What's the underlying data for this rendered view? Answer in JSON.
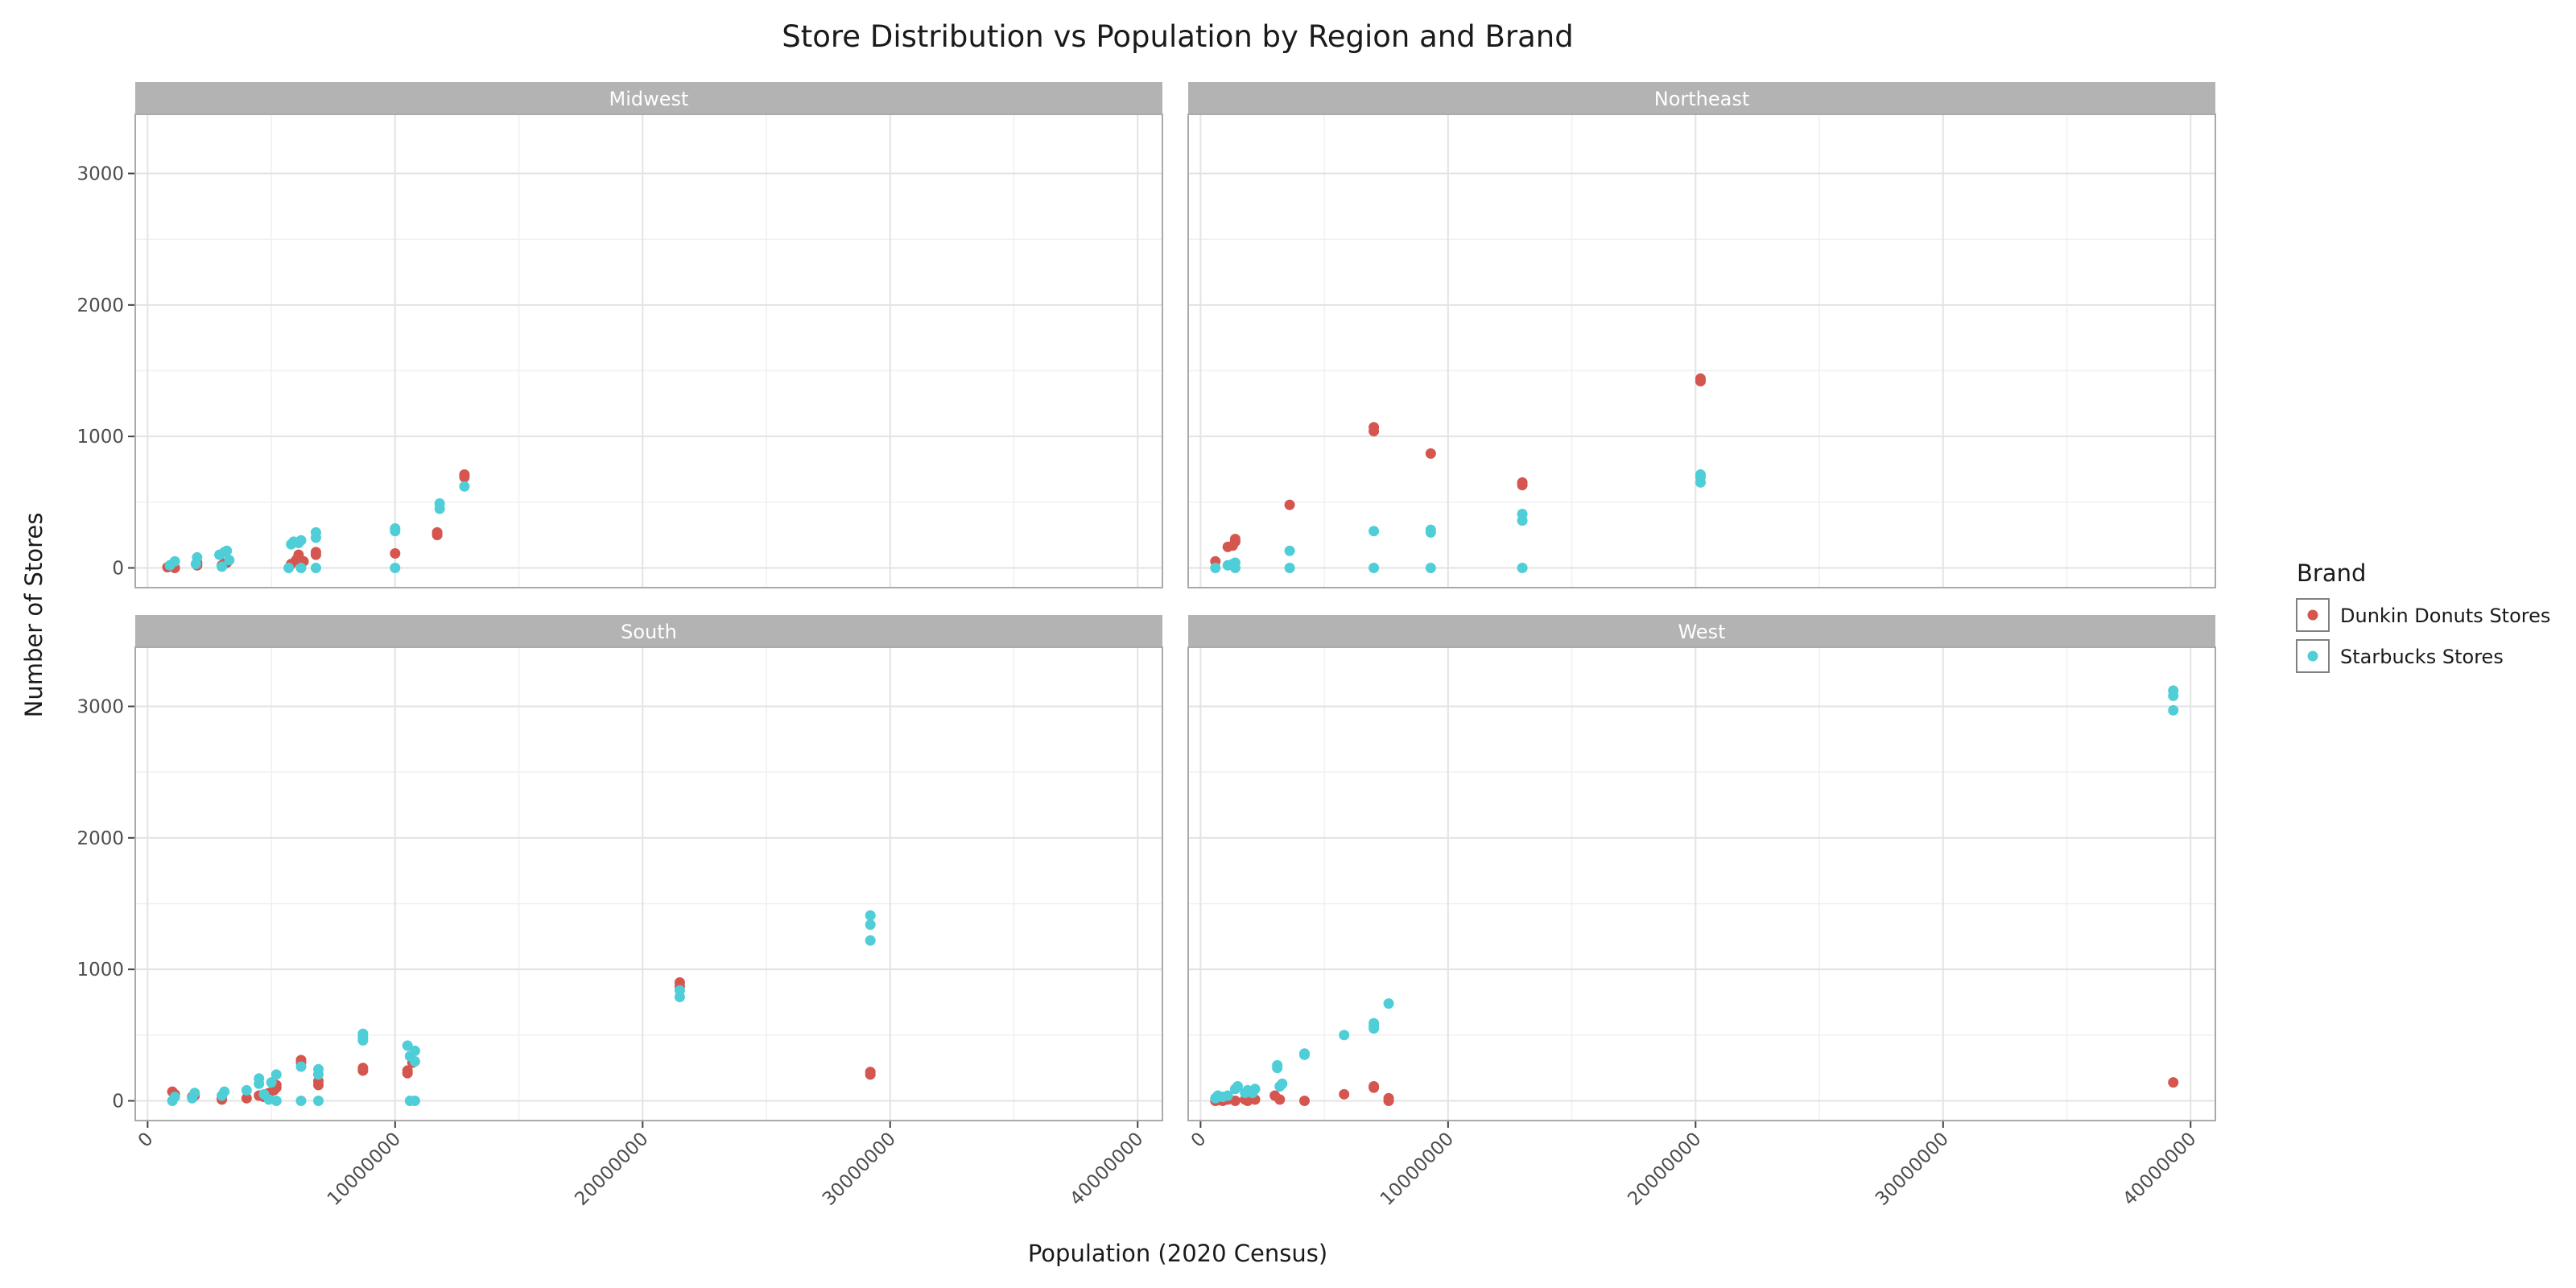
{
  "chart_data": {
    "type": "scatter",
    "title": "Store Distribution vs Population by Region and Brand",
    "xlabel": "Population (2020 Census)",
    "ylabel": "Number of Stores",
    "xlim": [
      -500000,
      41000000
    ],
    "ylim": [
      -150,
      3450
    ],
    "x_ticks": [
      0,
      10000000,
      20000000,
      30000000,
      40000000
    ],
    "x_tick_labels": [
      "0",
      "10000000",
      "20000000",
      "30000000",
      "40000000"
    ],
    "y_ticks": [
      0,
      1000,
      2000,
      3000
    ],
    "y_tick_labels": [
      "0",
      "1000",
      "2000",
      "3000"
    ],
    "grid": true,
    "legend": {
      "title": "Brand",
      "position": "right",
      "entries": [
        {
          "label": "Dunkin Donuts Stores",
          "color": "#D5564E"
        },
        {
          "label": "Starbucks Stores",
          "color": "#4FCED8"
        }
      ]
    },
    "colors": {
      "dunkin": "#D5564E",
      "starbucks": "#4FCED8",
      "strip": "#B3B3B3",
      "grid": "#E3E3E3",
      "panel_border": "#AAAAAA"
    },
    "facets": [
      {
        "name": "Midwest",
        "show_x_ticks": false,
        "dunkin": [
          [
            800000,
            5
          ],
          [
            1100000,
            0
          ],
          [
            2000000,
            20
          ],
          [
            2000000,
            40
          ],
          [
            3000000,
            20
          ],
          [
            3100000,
            35
          ],
          [
            3200000,
            40
          ],
          [
            5800000,
            30
          ],
          [
            6000000,
            60
          ],
          [
            6100000,
            100
          ],
          [
            6300000,
            50
          ],
          [
            6800000,
            100
          ],
          [
            6800000,
            120
          ],
          [
            10000000,
            110
          ],
          [
            11700000,
            250
          ],
          [
            11700000,
            270
          ],
          [
            12800000,
            690
          ],
          [
            12800000,
            710
          ]
        ],
        "starbucks": [
          [
            900000,
            20
          ],
          [
            1100000,
            50
          ],
          [
            1950000,
            30
          ],
          [
            2000000,
            80
          ],
          [
            2900000,
            100
          ],
          [
            3000000,
            10
          ],
          [
            3100000,
            120
          ],
          [
            3200000,
            130
          ],
          [
            3300000,
            60
          ],
          [
            5700000,
            0
          ],
          [
            5800000,
            180
          ],
          [
            5900000,
            200
          ],
          [
            6100000,
            190
          ],
          [
            6200000,
            210
          ],
          [
            6200000,
            0
          ],
          [
            6800000,
            230
          ],
          [
            6800000,
            270
          ],
          [
            6800000,
            0
          ],
          [
            10000000,
            280
          ],
          [
            10000000,
            300
          ],
          [
            10000000,
            0
          ],
          [
            11800000,
            450
          ],
          [
            11800000,
            490
          ],
          [
            12800000,
            620
          ]
        ]
      },
      {
        "name": "Northeast",
        "show_x_ticks": false,
        "dunkin": [
          [
            600000,
            50
          ],
          [
            1100000,
            160
          ],
          [
            1300000,
            170
          ],
          [
            1400000,
            200
          ],
          [
            1400000,
            220
          ],
          [
            3600000,
            480
          ],
          [
            7000000,
            1040
          ],
          [
            7000000,
            1070
          ],
          [
            9300000,
            870
          ],
          [
            13000000,
            630
          ],
          [
            13000000,
            650
          ],
          [
            20200000,
            1420
          ],
          [
            20200000,
            1440
          ]
        ],
        "starbucks": [
          [
            600000,
            0
          ],
          [
            1100000,
            20
          ],
          [
            1300000,
            30
          ],
          [
            1400000,
            0
          ],
          [
            1400000,
            40
          ],
          [
            3600000,
            130
          ],
          [
            3600000,
            0
          ],
          [
            7000000,
            280
          ],
          [
            7000000,
            0
          ],
          [
            9300000,
            270
          ],
          [
            9300000,
            290
          ],
          [
            9300000,
            0
          ],
          [
            13000000,
            360
          ],
          [
            13000000,
            410
          ],
          [
            13000000,
            0
          ],
          [
            20200000,
            650
          ],
          [
            20200000,
            690
          ],
          [
            20200000,
            710
          ]
        ]
      },
      {
        "name": "South",
        "show_x_ticks": true,
        "dunkin": [
          [
            1000000,
            70
          ],
          [
            1100000,
            50
          ],
          [
            1800000,
            30
          ],
          [
            1900000,
            40
          ],
          [
            3000000,
            10
          ],
          [
            3000000,
            20
          ],
          [
            4000000,
            20
          ],
          [
            4500000,
            40
          ],
          [
            4700000,
            30
          ],
          [
            4900000,
            60
          ],
          [
            5100000,
            80
          ],
          [
            5200000,
            100
          ],
          [
            5200000,
            120
          ],
          [
            6200000,
            290
          ],
          [
            6200000,
            310
          ],
          [
            6900000,
            120
          ],
          [
            6900000,
            150
          ],
          [
            8700000,
            230
          ],
          [
            8700000,
            250
          ],
          [
            10500000,
            210
          ],
          [
            10500000,
            230
          ],
          [
            10700000,
            290
          ],
          [
            21500000,
            870
          ],
          [
            21500000,
            900
          ],
          [
            29200000,
            200
          ],
          [
            29200000,
            220
          ]
        ],
        "starbucks": [
          [
            1000000,
            0
          ],
          [
            1100000,
            30
          ],
          [
            1800000,
            20
          ],
          [
            1900000,
            60
          ],
          [
            3000000,
            40
          ],
          [
            3100000,
            70
          ],
          [
            4000000,
            80
          ],
          [
            4500000,
            130
          ],
          [
            4500000,
            170
          ],
          [
            4700000,
            50
          ],
          [
            4900000,
            10
          ],
          [
            5000000,
            140
          ],
          [
            5200000,
            200
          ],
          [
            5200000,
            0
          ],
          [
            6200000,
            260
          ],
          [
            6200000,
            0
          ],
          [
            6900000,
            200
          ],
          [
            6900000,
            240
          ],
          [
            6900000,
            0
          ],
          [
            8700000,
            460
          ],
          [
            8700000,
            480
          ],
          [
            8700000,
            510
          ],
          [
            10500000,
            420
          ],
          [
            10600000,
            340
          ],
          [
            10600000,
            0
          ],
          [
            10800000,
            300
          ],
          [
            10800000,
            380
          ],
          [
            10800000,
            0
          ],
          [
            21500000,
            790
          ],
          [
            21500000,
            840
          ],
          [
            29200000,
            1220
          ],
          [
            29200000,
            1340
          ],
          [
            29200000,
            1410
          ]
        ]
      },
      {
        "name": "West",
        "show_x_ticks": true,
        "dunkin": [
          [
            600000,
            0
          ],
          [
            700000,
            5
          ],
          [
            900000,
            0
          ],
          [
            1100000,
            10
          ],
          [
            1400000,
            0
          ],
          [
            1800000,
            10
          ],
          [
            1900000,
            0
          ],
          [
            2100000,
            20
          ],
          [
            2200000,
            10
          ],
          [
            3000000,
            40
          ],
          [
            3200000,
            10
          ],
          [
            4200000,
            0
          ],
          [
            5800000,
            50
          ],
          [
            7000000,
            100
          ],
          [
            7000000,
            110
          ],
          [
            7600000,
            0
          ],
          [
            7600000,
            20
          ],
          [
            39300000,
            140
          ]
        ],
        "starbucks": [
          [
            600000,
            20
          ],
          [
            700000,
            40
          ],
          [
            900000,
            30
          ],
          [
            1100000,
            40
          ],
          [
            1400000,
            90
          ],
          [
            1500000,
            110
          ],
          [
            1800000,
            60
          ],
          [
            1900000,
            80
          ],
          [
            2100000,
            60
          ],
          [
            2200000,
            90
          ],
          [
            3100000,
            250
          ],
          [
            3100000,
            270
          ],
          [
            3200000,
            110
          ],
          [
            3300000,
            130
          ],
          [
            4200000,
            350
          ],
          [
            4200000,
            360
          ],
          [
            5800000,
            500
          ],
          [
            7000000,
            550
          ],
          [
            7000000,
            570
          ],
          [
            7000000,
            590
          ],
          [
            7600000,
            740
          ],
          [
            39300000,
            2970
          ],
          [
            39300000,
            3080
          ],
          [
            39300000,
            3120
          ]
        ]
      }
    ]
  }
}
